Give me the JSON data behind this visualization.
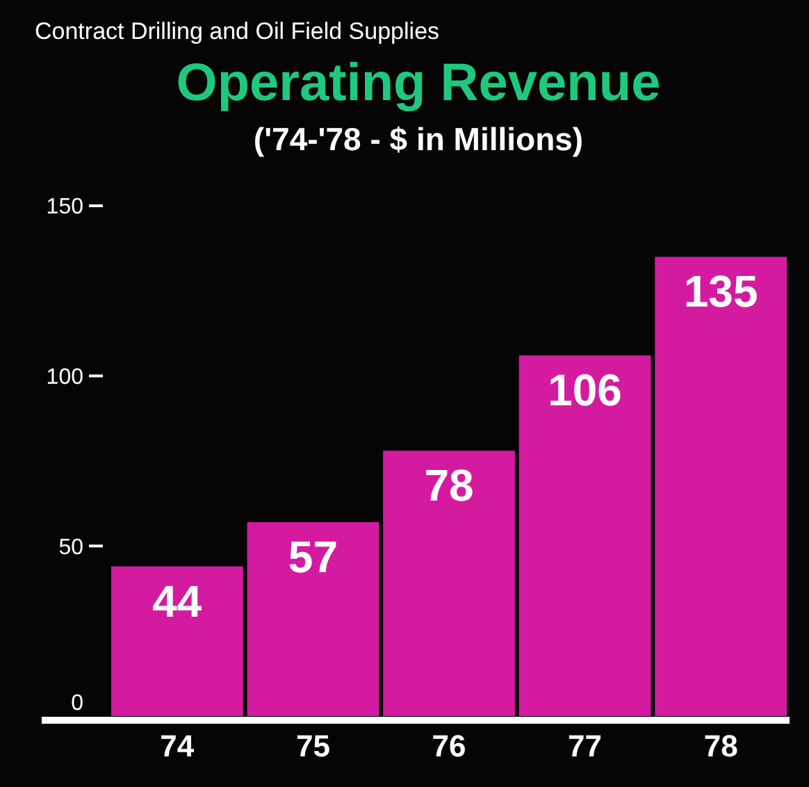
{
  "chart_data": {
    "type": "bar",
    "title": "Operating Revenue",
    "subtitle": "('74-'78 - $ in Millions)",
    "annotations": [
      "Contract Drilling and Oil Field Supplies"
    ],
    "categories": [
      "74",
      "75",
      "76",
      "77",
      "78"
    ],
    "values": [
      44,
      57,
      78,
      106,
      135
    ],
    "color": "#d41ba0",
    "ylim": [
      0,
      150
    ],
    "yticks": [
      0,
      50,
      100,
      150
    ],
    "data_labels": true,
    "grid": false
  }
}
